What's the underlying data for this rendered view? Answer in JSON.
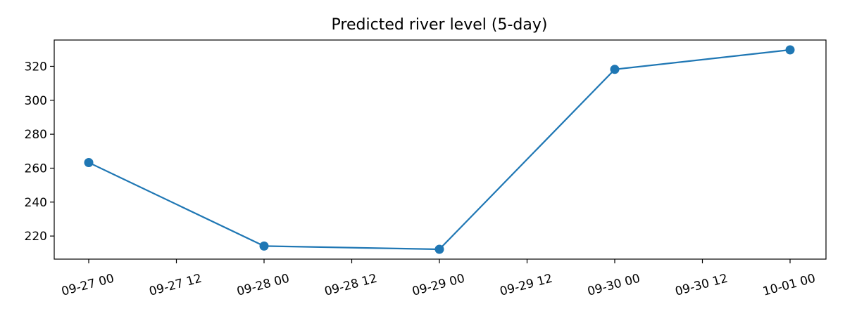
{
  "chart_data": {
    "type": "line",
    "title": "Predicted river level (5-day)",
    "xlabel": "",
    "ylabel": "",
    "x": [
      "09-27 00",
      "09-28 00",
      "09-29 00",
      "09-30 00",
      "10-01 00"
    ],
    "values": [
      263.3,
      214.1,
      212.2,
      318.2,
      329.7
    ],
    "x_ticks": [
      "09-27 00",
      "09-27 12",
      "09-28 00",
      "09-28 12",
      "09-29 00",
      "09-29 12",
      "09-30 00",
      "09-30 12",
      "10-01 00"
    ],
    "y_ticks": [
      220,
      240,
      260,
      280,
      300,
      320
    ],
    "ylim": [
      206.4,
      335.5
    ],
    "grid": false,
    "legend": "none",
    "marker": "circle",
    "color": "#1f77b4"
  }
}
